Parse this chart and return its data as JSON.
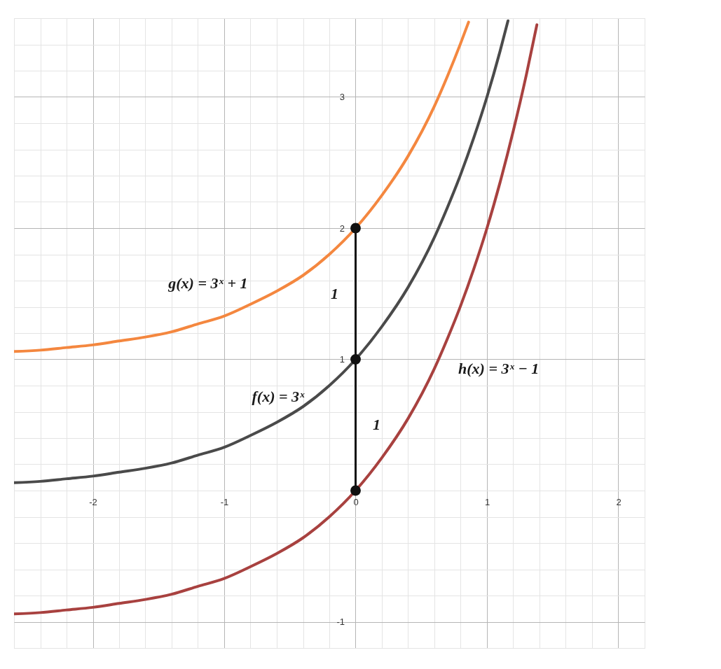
{
  "chart_data": {
    "type": "line",
    "xlim": [
      -2.6,
      2.2
    ],
    "ylim": [
      -1.2,
      3.6
    ],
    "xticks": [
      {
        "value": -2.6,
        "label": null
      },
      {
        "value": -2.4,
        "label": null
      },
      {
        "value": -2.2,
        "label": null
      },
      -2,
      {
        "value": -1.8,
        "label": null
      },
      {
        "value": -1.6,
        "label": null
      },
      {
        "value": -1.4,
        "label": null
      },
      {
        "value": -1.2,
        "label": null
      },
      -1,
      {
        "value": -0.8,
        "label": null
      },
      {
        "value": -0.6,
        "label": null
      },
      {
        "value": -0.4,
        "label": null
      },
      {
        "value": -0.2,
        "label": null
      },
      0,
      {
        "value": 0.2,
        "label": null
      },
      {
        "value": 0.4,
        "label": null
      },
      {
        "value": 0.6,
        "label": null
      },
      {
        "value": 0.8,
        "label": null
      },
      1,
      {
        "value": 1.2,
        "label": null
      },
      {
        "value": 1.4,
        "label": null
      },
      {
        "value": 1.6,
        "label": null
      },
      {
        "value": 1.8,
        "label": null
      },
      2,
      {
        "value": 2.2,
        "label": null
      }
    ],
    "yticks": [
      {
        "value": -1.2,
        "label": null
      },
      -1,
      {
        "value": -0.8,
        "label": null
      },
      {
        "value": -0.6,
        "label": null
      },
      {
        "value": -0.4,
        "label": null
      },
      {
        "value": -0.2,
        "label": null
      },
      {
        "value": 0,
        "label": null
      },
      {
        "value": 0.2,
        "label": null
      },
      {
        "value": 0.4,
        "label": null
      },
      {
        "value": 0.6,
        "label": null
      },
      {
        "value": 0.8,
        "label": null
      },
      1,
      {
        "value": 1.2,
        "label": null
      },
      {
        "value": 1.4,
        "label": null
      },
      {
        "value": 1.6,
        "label": null
      },
      {
        "value": 1.8,
        "label": null
      },
      2,
      {
        "value": 2.2,
        "label": null
      },
      {
        "value": 2.4,
        "label": null
      },
      {
        "value": 2.6,
        "label": null
      },
      {
        "value": 2.8,
        "label": null
      },
      3,
      {
        "value": 3.2,
        "label": null
      },
      {
        "value": 3.4,
        "label": null
      },
      {
        "value": 3.6,
        "label": null
      }
    ],
    "grid": true,
    "series": [
      {
        "color": "#f4873f",
        "x": [
          -2.6,
          -2.4,
          -2.2,
          -2.0,
          -1.8,
          -1.6,
          -1.4,
          -1.2,
          -1.0,
          -0.8,
          -0.6,
          -0.4,
          -0.2,
          0,
          0.2,
          0.4,
          0.6,
          0.7,
          0.8,
          0.86
        ],
        "values": [
          1.06,
          1.07,
          1.09,
          1.11,
          1.14,
          1.17,
          1.21,
          1.27,
          1.33,
          1.42,
          1.52,
          1.64,
          1.8,
          2,
          2.25,
          2.55,
          2.93,
          3.16,
          3.41,
          3.57
        ]
      },
      {
        "color": "#4a4a4a",
        "x": [
          -2.6,
          -2.4,
          -2.2,
          -2.0,
          -1.8,
          -1.6,
          -1.4,
          -1.2,
          -1.0,
          -0.8,
          -0.6,
          -0.4,
          -0.2,
          0,
          0.2,
          0.4,
          0.6,
          0.7,
          0.8,
          0.9,
          1.0,
          1.1,
          1.16
        ],
        "values": [
          0.06,
          0.07,
          0.09,
          0.11,
          0.14,
          0.17,
          0.21,
          0.27,
          0.33,
          0.42,
          0.52,
          0.64,
          0.8,
          1,
          1.25,
          1.55,
          1.93,
          2.16,
          2.41,
          2.69,
          3,
          3.35,
          3.58
        ]
      },
      {
        "color": "#a8413f",
        "x": [
          -2.6,
          -2.4,
          -2.2,
          -2.0,
          -1.8,
          -1.6,
          -1.4,
          -1.2,
          -1.0,
          -0.8,
          -0.6,
          -0.4,
          -0.2,
          0,
          0.2,
          0.4,
          0.6,
          0.7,
          0.8,
          0.9,
          1.0,
          1.1,
          1.2,
          1.3,
          1.38
        ],
        "values": [
          -0.94,
          -0.93,
          -0.91,
          -0.89,
          -0.86,
          -0.83,
          -0.79,
          -0.73,
          -0.67,
          -0.58,
          -0.48,
          -0.36,
          -0.2,
          0,
          0.25,
          0.55,
          0.93,
          1.16,
          1.41,
          1.69,
          2,
          2.35,
          2.74,
          3.17,
          3.55
        ]
      },
      {
        "color": "#111111",
        "x": [
          0,
          0
        ],
        "values": [
          0,
          2
        ]
      },
      {
        "type": "scatter",
        "marker": "circle",
        "color": "#111111",
        "x": [
          0,
          0,
          0
        ],
        "values": [
          2,
          1,
          0
        ]
      }
    ],
    "annotations": [
      {
        "text": "g(x) = 3ˣ + 1",
        "x": -0.8,
        "y": 1.42
      },
      {
        "text": "f(x) = 3ˣ",
        "x": -0.4,
        "y": 0.64
      },
      {
        "text": "h(x) = 3ˣ − 1",
        "x": 0.6,
        "y": 0.93
      },
      {
        "text": "1",
        "x": 0,
        "y": 1.5
      },
      {
        "text": "1",
        "x": 0,
        "y": 0.5
      }
    ]
  }
}
